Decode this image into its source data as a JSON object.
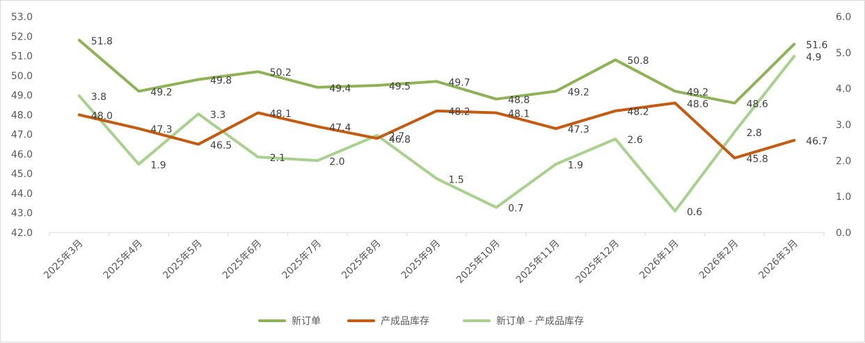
{
  "chart_data": {
    "type": "line",
    "categories": [
      "2025年3月",
      "2025年4月",
      "2025年5月",
      "2025年6月",
      "2025年7月",
      "2025年8月",
      "2025年9月",
      "2025年10月",
      "2025年11月",
      "2025年12月",
      "2026年1月",
      "2026年2月",
      "2026年3月"
    ],
    "series": [
      {
        "name": "新订单",
        "axis": "left",
        "color": "#8DB356",
        "values": [
          51.8,
          49.2,
          49.8,
          50.2,
          49.4,
          49.5,
          49.7,
          48.8,
          49.2,
          50.8,
          49.2,
          48.6,
          51.6
        ],
        "labels": [
          "51.8",
          "49.2",
          "49.8",
          "50.2",
          "49.4",
          "49.5",
          "49.7",
          "48.8",
          "49.2",
          "50.8",
          "49.2",
          "48.6",
          "51.6"
        ]
      },
      {
        "name": "产成品库存",
        "axis": "left",
        "color": "#C55A11",
        "values": [
          48.0,
          47.3,
          46.5,
          48.1,
          47.4,
          46.8,
          48.2,
          48.1,
          47.3,
          48.2,
          48.6,
          45.8,
          46.7
        ],
        "labels": [
          "48.0",
          "47.3",
          "46.5",
          "48.1",
          "47.4",
          "46.8",
          "48.2",
          "48.1",
          "47.3",
          "48.2",
          "48.6",
          "45.8",
          "46.7"
        ]
      },
      {
        "name": "新订单 - 产成品库存",
        "axis": "right",
        "color": "#A9D18E",
        "values": [
          3.8,
          1.9,
          3.3,
          2.1,
          2.0,
          2.7,
          1.5,
          0.7,
          1.9,
          2.6,
          0.6,
          2.8,
          4.9
        ],
        "labels": [
          "3.8",
          "1.9",
          "3.3",
          "2.1",
          "2.0",
          "2.7",
          "1.5",
          "0.7",
          "1.9",
          "2.6",
          "0.6",
          "2.8",
          "4.9"
        ]
      }
    ],
    "y_left": {
      "min": 42.0,
      "max": 53.0,
      "step": 1.0,
      "ticks": [
        "42.0",
        "43.0",
        "44.0",
        "45.0",
        "46.0",
        "47.0",
        "48.0",
        "49.0",
        "50.0",
        "51.0",
        "52.0",
        "53.0"
      ]
    },
    "y_right": {
      "min": 0.0,
      "max": 6.0,
      "step": 1.0,
      "ticks": [
        "0.0",
        "1.0",
        "2.0",
        "3.0",
        "4.0",
        "5.0",
        "6.0"
      ]
    },
    "grid": false,
    "legend_position": "bottom"
  }
}
